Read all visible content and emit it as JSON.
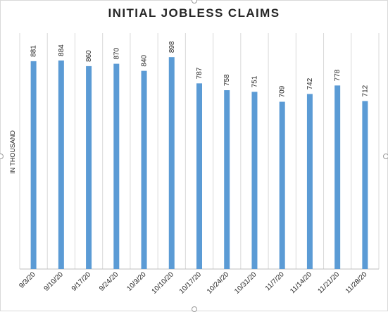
{
  "chart_data": {
    "type": "bar",
    "title": "INITIAL JOBLESS CLAIMS",
    "ylabel": "IN THOUSAND",
    "xlabel": "",
    "categories": [
      "9/3/20",
      "9/10/20",
      "9/17/20",
      "9/24/20",
      "10/3/20",
      "10/10/20",
      "10/17/20",
      "10/24/20",
      "10/31/20",
      "11/7/20",
      "11/14/20",
      "11/21/20",
      "11/28/20"
    ],
    "values": [
      881,
      884,
      860,
      870,
      840,
      898,
      787,
      758,
      751,
      709,
      742,
      778,
      712
    ],
    "ylim": [
      0,
      1000
    ],
    "grid": "vertical category separators",
    "bar_color": "#5b9bd5",
    "data_labels": true
  }
}
